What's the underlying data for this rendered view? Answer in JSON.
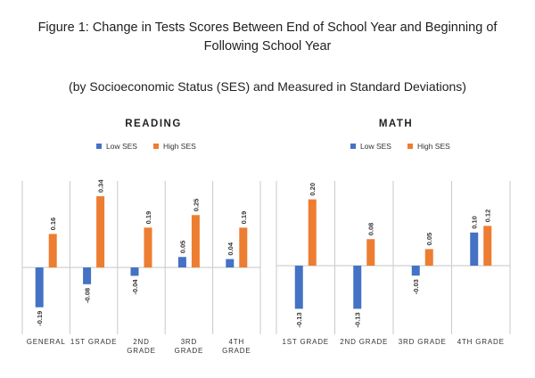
{
  "title_line1": "Figure 1: Change in Tests Scores Between End of School Year and Beginning of",
  "title_line2": "Following School Year",
  "subtitle": "(by Socioeconomic Status (SES) and Measured in Standard Deviations)",
  "colors": {
    "low": "#4472c4",
    "high": "#ed7d31",
    "grid": "#c9c9c9",
    "axis": "#d0d0d0"
  },
  "legend": {
    "low": "Low SES",
    "high": "High SES"
  },
  "chart_data": [
    {
      "type": "bar",
      "title": "READING",
      "categories": [
        [
          "GENERAL"
        ],
        [
          "1ST GRADE"
        ],
        [
          "2ND",
          "GRADE"
        ],
        [
          "3RD",
          "GRADE"
        ],
        [
          "4TH",
          "GRADE"
        ]
      ],
      "series": [
        {
          "name": "Low SES",
          "values": [
            -0.19,
            -0.08,
            -0.04,
            0.05,
            0.04
          ],
          "labels": [
            "-0.19",
            "-0.08",
            "-0.04",
            "0.05",
            "0.04"
          ]
        },
        {
          "name": "High SES",
          "values": [
            0.16,
            0.34,
            0.19,
            0.25,
            0.19
          ],
          "labels": [
            "0.16",
            "0.34",
            "0.19",
            "0.25",
            "0.19"
          ]
        }
      ],
      "legend_position": "top"
    },
    {
      "type": "bar",
      "title": "MATH",
      "categories": [
        [
          "1ST GRADE"
        ],
        [
          "2ND GRADE"
        ],
        [
          "3RD GRADE"
        ],
        [
          "4TH GRADE"
        ]
      ],
      "series": [
        {
          "name": "Low SES",
          "values": [
            -0.13,
            -0.13,
            -0.03,
            0.1
          ],
          "labels": [
            "-0.13",
            "-0.13",
            "-0.03",
            "0.10"
          ]
        },
        {
          "name": "High SES",
          "values": [
            0.2,
            0.08,
            0.05,
            0.12
          ],
          "labels": [
            "0.20",
            "0.08",
            "0.05",
            "0.12"
          ]
        }
      ],
      "legend_position": "top"
    }
  ]
}
